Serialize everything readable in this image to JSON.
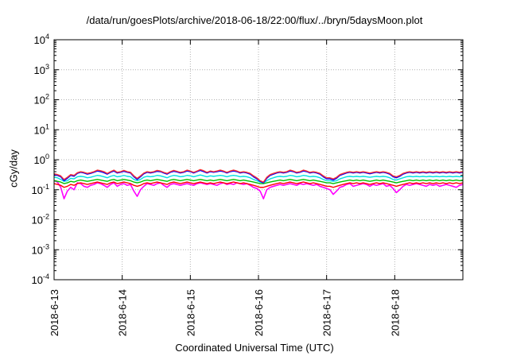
{
  "chart_data": {
    "type": "line",
    "title": "/data/run/goesPlots/archive/2018-06-18/22:00/flux/../bryn/5daysMoon.plot",
    "xlabel": "Coordinated Universal Time (UTC)",
    "ylabel": "cGy/day",
    "y_scale": "log",
    "ylim": [
      0.0001,
      10000
    ],
    "yticks": [
      {
        "value": 0.0001,
        "mant": "10",
        "exp": "-4"
      },
      {
        "value": 0.001,
        "mant": "10",
        "exp": "-3"
      },
      {
        "value": 0.01,
        "mant": "10",
        "exp": "-2"
      },
      {
        "value": 0.1,
        "mant": "10",
        "exp": "-1"
      },
      {
        "value": 1,
        "mant": "10",
        "exp": "0"
      },
      {
        "value": 10,
        "mant": "10",
        "exp": "1"
      },
      {
        "value": 100,
        "mant": "10",
        "exp": "2"
      },
      {
        "value": 1000,
        "mant": "10",
        "exp": "3"
      },
      {
        "value": 10000,
        "mant": "10",
        "exp": "4"
      }
    ],
    "xlim": [
      "2018-06-13 00:00",
      "2018-06-19 00:00"
    ],
    "xticks": [
      "2018-6-13",
      "2018-6-14",
      "2018-6-15",
      "2018-6-16",
      "2018-6-17",
      "2018-6-18"
    ],
    "grid": true,
    "series": [
      {
        "color": "#ff00ff",
        "values": [
          0.2,
          0.18,
          0.12,
          0.05,
          0.09,
          0.12,
          0.1,
          0.17,
          0.16,
          0.13,
          0.12,
          0.14,
          0.15,
          0.17,
          0.16,
          0.14,
          0.12,
          0.15,
          0.17,
          0.13,
          0.15,
          0.16,
          0.14,
          0.15,
          0.09,
          0.06,
          0.1,
          0.13,
          0.16,
          0.15,
          0.14,
          0.16,
          0.17,
          0.14,
          0.12,
          0.15,
          0.16,
          0.15,
          0.14,
          0.15,
          0.16,
          0.15,
          0.14,
          0.16,
          0.17,
          0.16,
          0.15,
          0.16,
          0.15,
          0.14,
          0.16,
          0.17,
          0.15,
          0.16,
          0.15,
          0.17,
          0.16,
          0.15,
          0.16,
          0.14,
          0.12,
          0.11,
          0.09,
          0.05,
          0.1,
          0.12,
          0.13,
          0.14,
          0.15,
          0.14,
          0.15,
          0.16,
          0.15,
          0.14,
          0.16,
          0.15,
          0.16,
          0.15,
          0.14,
          0.15,
          0.13,
          0.12,
          0.11,
          0.1,
          0.07,
          0.09,
          0.12,
          0.13,
          0.15,
          0.16,
          0.13,
          0.14,
          0.15,
          0.16,
          0.15,
          0.13,
          0.15,
          0.14,
          0.15,
          0.16,
          0.13,
          0.14,
          0.11,
          0.08,
          0.1,
          0.13,
          0.15,
          0.14,
          0.15,
          0.16,
          0.15,
          0.14,
          0.13,
          0.15,
          0.14,
          0.15,
          0.13,
          0.14,
          0.15,
          0.14,
          0.13,
          0.12,
          0.14,
          0.15
        ]
      },
      {
        "color": "#ff0000",
        "values": [
          0.16,
          0.15,
          0.14,
          0.12,
          0.13,
          0.15,
          0.14,
          0.16,
          0.17,
          0.16,
          0.15,
          0.16,
          0.17,
          0.18,
          0.17,
          0.16,
          0.15,
          0.17,
          0.18,
          0.16,
          0.17,
          0.18,
          0.17,
          0.16,
          0.14,
          0.13,
          0.14,
          0.16,
          0.17,
          0.16,
          0.17,
          0.18,
          0.17,
          0.16,
          0.15,
          0.17,
          0.18,
          0.17,
          0.16,
          0.17,
          0.18,
          0.17,
          0.16,
          0.17,
          0.18,
          0.17,
          0.16,
          0.17,
          0.16,
          0.17,
          0.18,
          0.17,
          0.16,
          0.17,
          0.18,
          0.17,
          0.16,
          0.17,
          0.16,
          0.15,
          0.14,
          0.13,
          0.12,
          0.12,
          0.13,
          0.14,
          0.15,
          0.16,
          0.17,
          0.16,
          0.17,
          0.18,
          0.17,
          0.16,
          0.17,
          0.18,
          0.17,
          0.16,
          0.17,
          0.16,
          0.15,
          0.14,
          0.13,
          0.13,
          0.12,
          0.13,
          0.14,
          0.15,
          0.16,
          0.17,
          0.16,
          0.17,
          0.16,
          0.17,
          0.16,
          0.15,
          0.16,
          0.17,
          0.16,
          0.17,
          0.16,
          0.15,
          0.14,
          0.13,
          0.14,
          0.15,
          0.16,
          0.17,
          0.16,
          0.17,
          0.16,
          0.17,
          0.16,
          0.17,
          0.16,
          0.17,
          0.16,
          0.17,
          0.16,
          0.17,
          0.16,
          0.17,
          0.16,
          0.17
        ]
      },
      {
        "color": "#00c000",
        "values": [
          0.2,
          0.19,
          0.18,
          0.16,
          0.17,
          0.19,
          0.18,
          0.2,
          0.21,
          0.2,
          0.19,
          0.2,
          0.21,
          0.22,
          0.21,
          0.2,
          0.19,
          0.21,
          0.22,
          0.2,
          0.21,
          0.22,
          0.21,
          0.2,
          0.18,
          0.17,
          0.18,
          0.2,
          0.21,
          0.2,
          0.21,
          0.22,
          0.21,
          0.2,
          0.19,
          0.21,
          0.22,
          0.21,
          0.2,
          0.21,
          0.22,
          0.21,
          0.2,
          0.21,
          0.22,
          0.21,
          0.2,
          0.21,
          0.2,
          0.21,
          0.22,
          0.21,
          0.2,
          0.21,
          0.22,
          0.21,
          0.2,
          0.21,
          0.2,
          0.19,
          0.18,
          0.17,
          0.16,
          0.16,
          0.17,
          0.18,
          0.19,
          0.2,
          0.21,
          0.2,
          0.21,
          0.22,
          0.21,
          0.2,
          0.21,
          0.22,
          0.21,
          0.2,
          0.21,
          0.2,
          0.19,
          0.18,
          0.17,
          0.17,
          0.16,
          0.17,
          0.18,
          0.19,
          0.2,
          0.21,
          0.2,
          0.21,
          0.2,
          0.21,
          0.2,
          0.19,
          0.2,
          0.21,
          0.2,
          0.21,
          0.2,
          0.19,
          0.18,
          0.17,
          0.18,
          0.19,
          0.2,
          0.21,
          0.2,
          0.21,
          0.2,
          0.21,
          0.2,
          0.21,
          0.2,
          0.21,
          0.2,
          0.21,
          0.2,
          0.21,
          0.2,
          0.21,
          0.2,
          0.21
        ]
      },
      {
        "color": "#00e0e0",
        "values": [
          0.26,
          0.25,
          0.22,
          0.19,
          0.2,
          0.24,
          0.23,
          0.27,
          0.28,
          0.27,
          0.25,
          0.26,
          0.28,
          0.3,
          0.29,
          0.27,
          0.25,
          0.28,
          0.3,
          0.27,
          0.28,
          0.3,
          0.28,
          0.27,
          0.22,
          0.2,
          0.22,
          0.26,
          0.28,
          0.27,
          0.28,
          0.3,
          0.29,
          0.27,
          0.25,
          0.28,
          0.3,
          0.29,
          0.27,
          0.28,
          0.3,
          0.29,
          0.27,
          0.29,
          0.31,
          0.29,
          0.27,
          0.29,
          0.28,
          0.29,
          0.3,
          0.29,
          0.27,
          0.29,
          0.3,
          0.29,
          0.27,
          0.28,
          0.27,
          0.25,
          0.22,
          0.2,
          0.18,
          0.17,
          0.2,
          0.23,
          0.25,
          0.27,
          0.28,
          0.27,
          0.28,
          0.3,
          0.29,
          0.27,
          0.28,
          0.3,
          0.29,
          0.27,
          0.28,
          0.27,
          0.25,
          0.22,
          0.2,
          0.2,
          0.19,
          0.2,
          0.23,
          0.25,
          0.27,
          0.28,
          0.27,
          0.28,
          0.27,
          0.28,
          0.27,
          0.26,
          0.27,
          0.28,
          0.27,
          0.28,
          0.27,
          0.25,
          0.22,
          0.21,
          0.23,
          0.25,
          0.27,
          0.28,
          0.27,
          0.28,
          0.27,
          0.28,
          0.27,
          0.28,
          0.27,
          0.28,
          0.27,
          0.28,
          0.27,
          0.28,
          0.27,
          0.28,
          0.27,
          0.28
        ]
      },
      {
        "color": "#0000ff",
        "values": [
          0.32,
          0.3,
          0.27,
          0.2,
          0.24,
          0.3,
          0.28,
          0.35,
          0.38,
          0.36,
          0.33,
          0.35,
          0.38,
          0.42,
          0.4,
          0.37,
          0.33,
          0.38,
          0.42,
          0.36,
          0.38,
          0.41,
          0.38,
          0.36,
          0.27,
          0.22,
          0.27,
          0.34,
          0.38,
          0.36,
          0.38,
          0.41,
          0.4,
          0.36,
          0.33,
          0.38,
          0.41,
          0.39,
          0.36,
          0.38,
          0.42,
          0.4,
          0.36,
          0.4,
          0.44,
          0.4,
          0.36,
          0.4,
          0.38,
          0.4,
          0.42,
          0.4,
          0.36,
          0.4,
          0.42,
          0.4,
          0.36,
          0.38,
          0.36,
          0.33,
          0.27,
          0.23,
          0.19,
          0.17,
          0.24,
          0.3,
          0.33,
          0.36,
          0.38,
          0.36,
          0.38,
          0.42,
          0.4,
          0.36,
          0.38,
          0.42,
          0.4,
          0.36,
          0.38,
          0.36,
          0.33,
          0.27,
          0.23,
          0.23,
          0.21,
          0.24,
          0.3,
          0.33,
          0.36,
          0.38,
          0.36,
          0.38,
          0.36,
          0.38,
          0.36,
          0.34,
          0.36,
          0.38,
          0.36,
          0.38,
          0.36,
          0.33,
          0.27,
          0.25,
          0.28,
          0.33,
          0.36,
          0.38,
          0.36,
          0.38,
          0.36,
          0.38,
          0.36,
          0.38,
          0.36,
          0.38,
          0.36,
          0.38,
          0.36,
          0.38,
          0.36,
          0.38,
          0.36,
          0.38
        ]
      },
      {
        "color": "#ff3030",
        "values": [
          0.34,
          0.32,
          0.29,
          0.22,
          0.26,
          0.32,
          0.3,
          0.37,
          0.4,
          0.38,
          0.35,
          0.37,
          0.4,
          0.45,
          0.43,
          0.4,
          0.35,
          0.4,
          0.45,
          0.38,
          0.4,
          0.44,
          0.4,
          0.38,
          0.29,
          0.24,
          0.29,
          0.36,
          0.4,
          0.38,
          0.4,
          0.44,
          0.42,
          0.38,
          0.35,
          0.4,
          0.44,
          0.41,
          0.38,
          0.4,
          0.45,
          0.42,
          0.38,
          0.42,
          0.47,
          0.43,
          0.38,
          0.42,
          0.4,
          0.42,
          0.45,
          0.42,
          0.38,
          0.42,
          0.45,
          0.42,
          0.38,
          0.4,
          0.38,
          0.35,
          0.29,
          0.25,
          0.2,
          0.18,
          0.26,
          0.32,
          0.35,
          0.38,
          0.4,
          0.38,
          0.4,
          0.45,
          0.42,
          0.38,
          0.4,
          0.45,
          0.42,
          0.38,
          0.4,
          0.38,
          0.35,
          0.29,
          0.25,
          0.25,
          0.23,
          0.26,
          0.32,
          0.35,
          0.38,
          0.4,
          0.38,
          0.4,
          0.38,
          0.4,
          0.38,
          0.36,
          0.38,
          0.4,
          0.38,
          0.4,
          0.38,
          0.35,
          0.29,
          0.27,
          0.3,
          0.35,
          0.38,
          0.4,
          0.38,
          0.4,
          0.38,
          0.4,
          0.38,
          0.4,
          0.38,
          0.4,
          0.38,
          0.4,
          0.38,
          0.4,
          0.38,
          0.4,
          0.38,
          0.4
        ]
      }
    ]
  }
}
